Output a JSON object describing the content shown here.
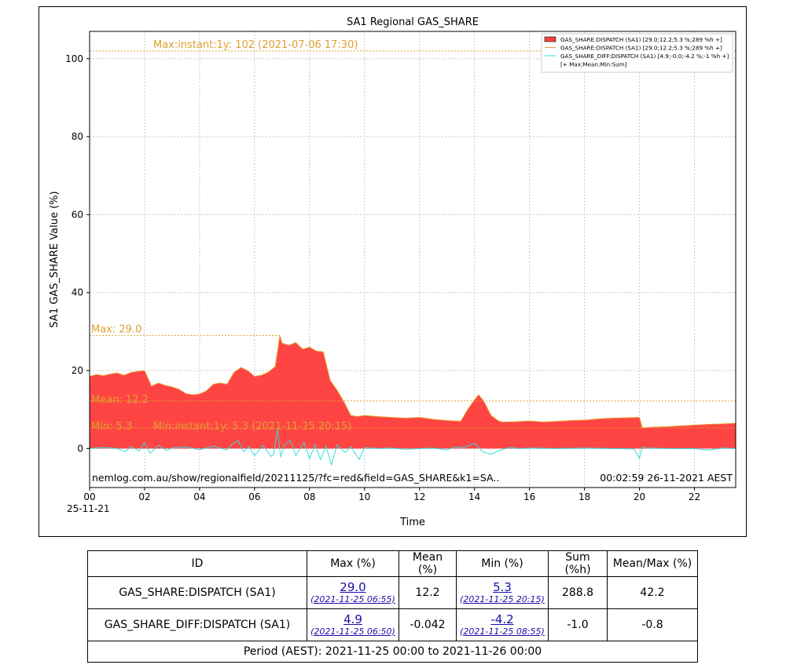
{
  "chart_data": {
    "type": "area",
    "title": "SA1 Regional GAS_SHARE",
    "xlabel": "Time",
    "ylabel": "SA1 GAS_SHARE Value (%)",
    "x_unit": "hours since 2021-11-25 00:00",
    "xlim": [
      0,
      23.5
    ],
    "ylim": [
      -10,
      107
    ],
    "x_ticks": [
      0,
      2,
      4,
      6,
      8,
      10,
      12,
      14,
      16,
      18,
      20,
      22
    ],
    "x_tick_labels": [
      "00",
      "02",
      "04",
      "06",
      "08",
      "10",
      "12",
      "14",
      "16",
      "18",
      "20",
      "22"
    ],
    "x_date_label": "25-11-21",
    "y_ticks": [
      0,
      20,
      40,
      60,
      80,
      100
    ],
    "y_tick_labels": [
      "0",
      "20",
      "40",
      "60",
      "80",
      "100"
    ],
    "grid": true,
    "legend_position": "top-right",
    "legend": [
      {
        "label": "GAS_SHARE:DISPATCH (SA1) [29.0;12.2;5.3 %;289 %h +]",
        "kind": "patch",
        "color": "#ff4444"
      },
      {
        "label": "GAS_SHARE:DISPATCH (SA1) [29.0;12.2;5.3 %;289 %h +]",
        "kind": "line",
        "color": "#e8a33a"
      },
      {
        "label": "GAS_SHARE_DIFF:DISPATCH (SA1) [4.9;-0.0;-4.2 %;-1 %h +]",
        "kind": "line",
        "color": "#33dddd"
      },
      {
        "label": "[+ Max;Mean;Min:Sum]",
        "kind": "text",
        "color": ""
      }
    ],
    "series": [
      {
        "name": "GAS_SHARE:DISPATCH (SA1)",
        "color": "#ff4444",
        "edge_color": "#e8a33a",
        "x": [
          0,
          0.25,
          0.5,
          0.75,
          1.0,
          1.25,
          1.5,
          1.75,
          2.0,
          2.25,
          2.5,
          2.75,
          3.0,
          3.25,
          3.5,
          3.75,
          4.0,
          4.25,
          4.5,
          4.75,
          5.0,
          5.25,
          5.5,
          5.75,
          6.0,
          6.25,
          6.5,
          6.75,
          6.92,
          7.0,
          7.25,
          7.5,
          7.75,
          8.0,
          8.25,
          8.5,
          8.75,
          9.0,
          9.25,
          9.5,
          9.75,
          10.0,
          10.5,
          11.0,
          11.5,
          12.0,
          12.5,
          13.0,
          13.5,
          13.75,
          14.0,
          14.15,
          14.35,
          14.6,
          14.85,
          15.0,
          15.5,
          16.0,
          16.5,
          17.0,
          17.5,
          18.0,
          18.5,
          19.0,
          19.5,
          20.0,
          20.1,
          20.5,
          21.0,
          21.5,
          22.0,
          22.5,
          23.0,
          23.5
        ],
        "y": [
          18.5,
          19.0,
          18.7,
          19.1,
          19.4,
          18.8,
          19.5,
          19.8,
          20.0,
          16.0,
          16.8,
          16.2,
          15.8,
          15.2,
          14.1,
          13.8,
          14.0,
          14.8,
          16.5,
          16.8,
          16.5,
          19.5,
          20.8,
          20.0,
          18.5,
          18.8,
          19.6,
          21.0,
          29.0,
          27.0,
          26.5,
          27.2,
          25.5,
          26.0,
          25.0,
          24.8,
          17.5,
          15.0,
          12.0,
          8.5,
          8.2,
          8.5,
          8.2,
          8.0,
          7.8,
          8.0,
          7.5,
          7.2,
          7.0,
          10.0,
          12.5,
          13.8,
          12.0,
          8.5,
          7.2,
          6.8,
          6.9,
          7.1,
          6.8,
          7.0,
          7.2,
          7.3,
          7.6,
          7.8,
          7.9,
          8.0,
          5.3,
          5.5,
          5.6,
          5.8,
          6.0,
          6.2,
          6.3,
          6.5
        ]
      },
      {
        "name": "GAS_SHARE_DIFF:DISPATCH (SA1)",
        "color": "#33dddd",
        "x": [
          0,
          0.5,
          1.0,
          1.3,
          1.5,
          1.8,
          2.0,
          2.2,
          2.5,
          2.8,
          3.0,
          3.5,
          4.0,
          4.5,
          5.0,
          5.2,
          5.4,
          5.6,
          5.8,
          6.0,
          6.3,
          6.6,
          6.7,
          6.83,
          6.95,
          7.1,
          7.3,
          7.5,
          7.8,
          8.0,
          8.2,
          8.4,
          8.6,
          8.8,
          9.0,
          9.3,
          9.5,
          9.8,
          10.0,
          10.5,
          11.0,
          11.5,
          12.0,
          12.5,
          13.0,
          13.3,
          13.6,
          14.0,
          14.3,
          14.6,
          14.9,
          15.3,
          15.6,
          16.0,
          17.0,
          18.0,
          19.0,
          19.8,
          20.0,
          20.1,
          20.3,
          21.0,
          22.0,
          22.5,
          23.0,
          23.5
        ],
        "y": [
          0,
          0.3,
          0,
          -0.8,
          0.5,
          -0.6,
          1.5,
          -1.2,
          0.8,
          -0.5,
          0.2,
          0.4,
          -0.3,
          0.6,
          -0.4,
          1.2,
          2.0,
          -0.8,
          0.5,
          -1.8,
          0.8,
          -2.0,
          -1.5,
          4.9,
          -2.2,
          1.0,
          2.1,
          -1.8,
          1.6,
          -2.6,
          1.1,
          -2.8,
          0.6,
          -4.2,
          0.9,
          -1.0,
          0.5,
          -2.8,
          0.2,
          0,
          0.1,
          -0.2,
          0,
          0.1,
          -0.3,
          0.4,
          0.2,
          1.3,
          -0.8,
          -1.5,
          -0.5,
          0.3,
          0.0,
          0.1,
          0,
          0.1,
          0,
          -0.1,
          -2.5,
          0.4,
          0.1,
          0,
          0,
          -0.4,
          0.1,
          0
        ]
      }
    ],
    "reference_lines": [
      {
        "y": 102,
        "label": "Max:instant:1y: 102 (2021-07-06 17:30)",
        "from_x": 0
      },
      {
        "y": 29.0,
        "label": "Max: 29.0",
        "from_x": 0,
        "to_x": 6.92
      },
      {
        "y": 12.2,
        "label": "Mean: 12.2",
        "from_x": 0
      },
      {
        "y": 5.3,
        "label": "Min: 5.3",
        "from_x": 0
      }
    ],
    "annotations": [
      {
        "text": "Min:instant:1y: 5.3 (2021-11-25 20:15)"
      },
      {
        "text": "nemlog.com.au/show/regionalfield/20211125/?fc=red&field=GAS_SHARE&k1=SA.."
      },
      {
        "text": "00:02:59 26-11-2021 AEST"
      }
    ]
  },
  "table": {
    "headers": [
      "ID",
      "Max (%)",
      "Mean (%)",
      "Min (%)",
      "Sum (%h)",
      "Mean/Max (%)"
    ],
    "rows": [
      {
        "id": "GAS_SHARE:DISPATCH (SA1)",
        "max": "29.0",
        "max_time": "(2021-11-25 06:55)",
        "mean": "12.2",
        "min": "5.3",
        "min_time": "(2021-11-25 20:15)",
        "sum": "288.8",
        "mean_max": "42.2"
      },
      {
        "id": "GAS_SHARE_DIFF:DISPATCH (SA1)",
        "max": "4.9",
        "max_time": "(2021-11-25 06:50)",
        "mean": "-0.042",
        "min": "-4.2",
        "min_time": "(2021-11-25 08:55)",
        "sum": "-1.0",
        "mean_max": "-0.8"
      }
    ],
    "footer": "Period (AEST): 2021-11-25 00:00 to 2021-11-26 00:00"
  }
}
